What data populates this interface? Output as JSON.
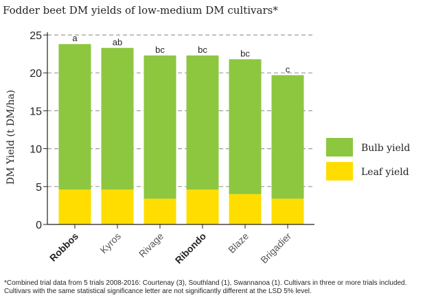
{
  "chart_data": {
    "type": "bar",
    "stacked": true,
    "title": "Fodder beet DM yields of low-medium DM cultivars*",
    "ylabel": "DM Yield (t DM/ha)",
    "xlabel": "",
    "ylim": [
      0,
      25
    ],
    "yticks": [
      "0",
      "5",
      "10",
      "15",
      "20",
      "25"
    ],
    "grid": "dashed horizontal",
    "legend_position": "right",
    "categories": [
      "Robbos",
      "Kyros",
      "Rivage",
      "Ribondo",
      "Blaze",
      "Brigadier"
    ],
    "bold_categories": [
      "Robbos",
      "Ribondo"
    ],
    "series": [
      {
        "name": "Leaf yield",
        "color": "#ffdd00",
        "values": [
          4.6,
          4.6,
          3.4,
          4.6,
          4.0,
          3.4
        ]
      },
      {
        "name": "Bulb yield",
        "color": "#8dc63f",
        "values": [
          19.2,
          18.7,
          18.9,
          17.7,
          17.8,
          16.3
        ]
      }
    ],
    "significance_labels": [
      "a",
      "ab",
      "bc",
      "bc",
      "bc",
      "c"
    ],
    "footnote": "*Combined trial data from 5 trials 2008-2016: Courtenay (3), Southland (1), Swannanoa (1). Cultivars in three or more trials included. Cultivars with the same statistical significance letter are not significantly different at the LSD 5% level."
  }
}
